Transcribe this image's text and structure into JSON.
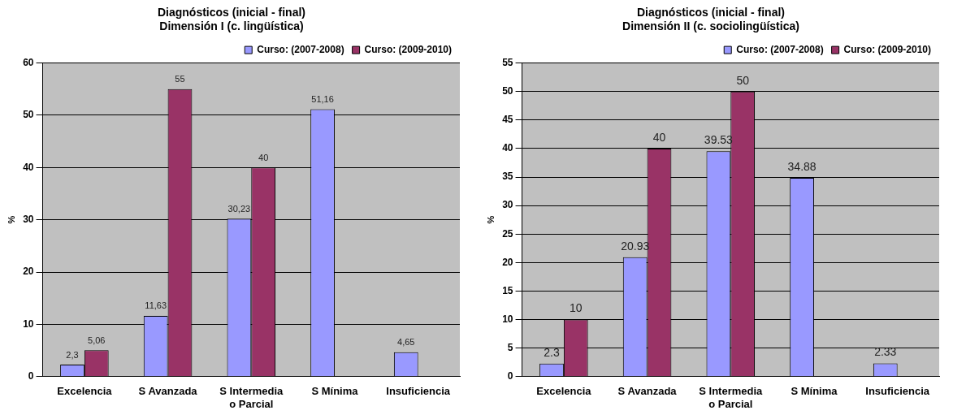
{
  "chart_data": [
    {
      "type": "bar",
      "title": "Diagnósticos (inicial - final)\nDimensión I (c. lingüística)",
      "ylabel": "%",
      "categories": [
        "Excelencia",
        "S Avanzada",
        "S Intermedia o Parcial",
        "S Mínima",
        "Insuficiencia"
      ],
      "series": [
        {
          "name": "Curso: (2007-2008)",
          "color": "#9999ff",
          "values": [
            2.3,
            11.63,
            30.23,
            51.16,
            4.65
          ],
          "value_labels": [
            "2,3",
            "11,63",
            "30,23",
            "51,16",
            "4,65"
          ]
        },
        {
          "name": "Curso: (2009-2010)",
          "color": "#993366",
          "values": [
            5.06,
            55,
            40,
            null,
            null
          ],
          "value_labels": [
            "5,06",
            "55",
            "40",
            null,
            null
          ]
        }
      ],
      "ylim": [
        0,
        60
      ],
      "yticks": [
        0,
        10,
        20,
        30,
        40,
        50,
        60
      ],
      "grid": "y",
      "legend": "top right"
    },
    {
      "type": "bar",
      "title": "Diagnósticos (inicial - final)\nDimensión II (c. sociolingüística)",
      "ylabel": "%",
      "categories": [
        "Excelencia",
        "S Avanzada",
        "S Intermedia o Parcial",
        "S Mínima",
        "Insuficiencia"
      ],
      "series": [
        {
          "name": "Curso: (2007-2008)",
          "color": "#9999ff",
          "values": [
            2.3,
            20.93,
            39.53,
            34.88,
            2.33
          ]
        },
        {
          "name": "Curso: (2009-2010)",
          "color": "#993366",
          "values": [
            10,
            40,
            50,
            null,
            null
          ]
        }
      ],
      "ylim": [
        0,
        55
      ],
      "yticks": [
        0,
        5,
        10,
        15,
        20,
        25,
        30,
        35,
        40,
        45,
        50,
        55
      ],
      "grid": "y",
      "legend": "top right",
      "data_labels": true
    }
  ]
}
